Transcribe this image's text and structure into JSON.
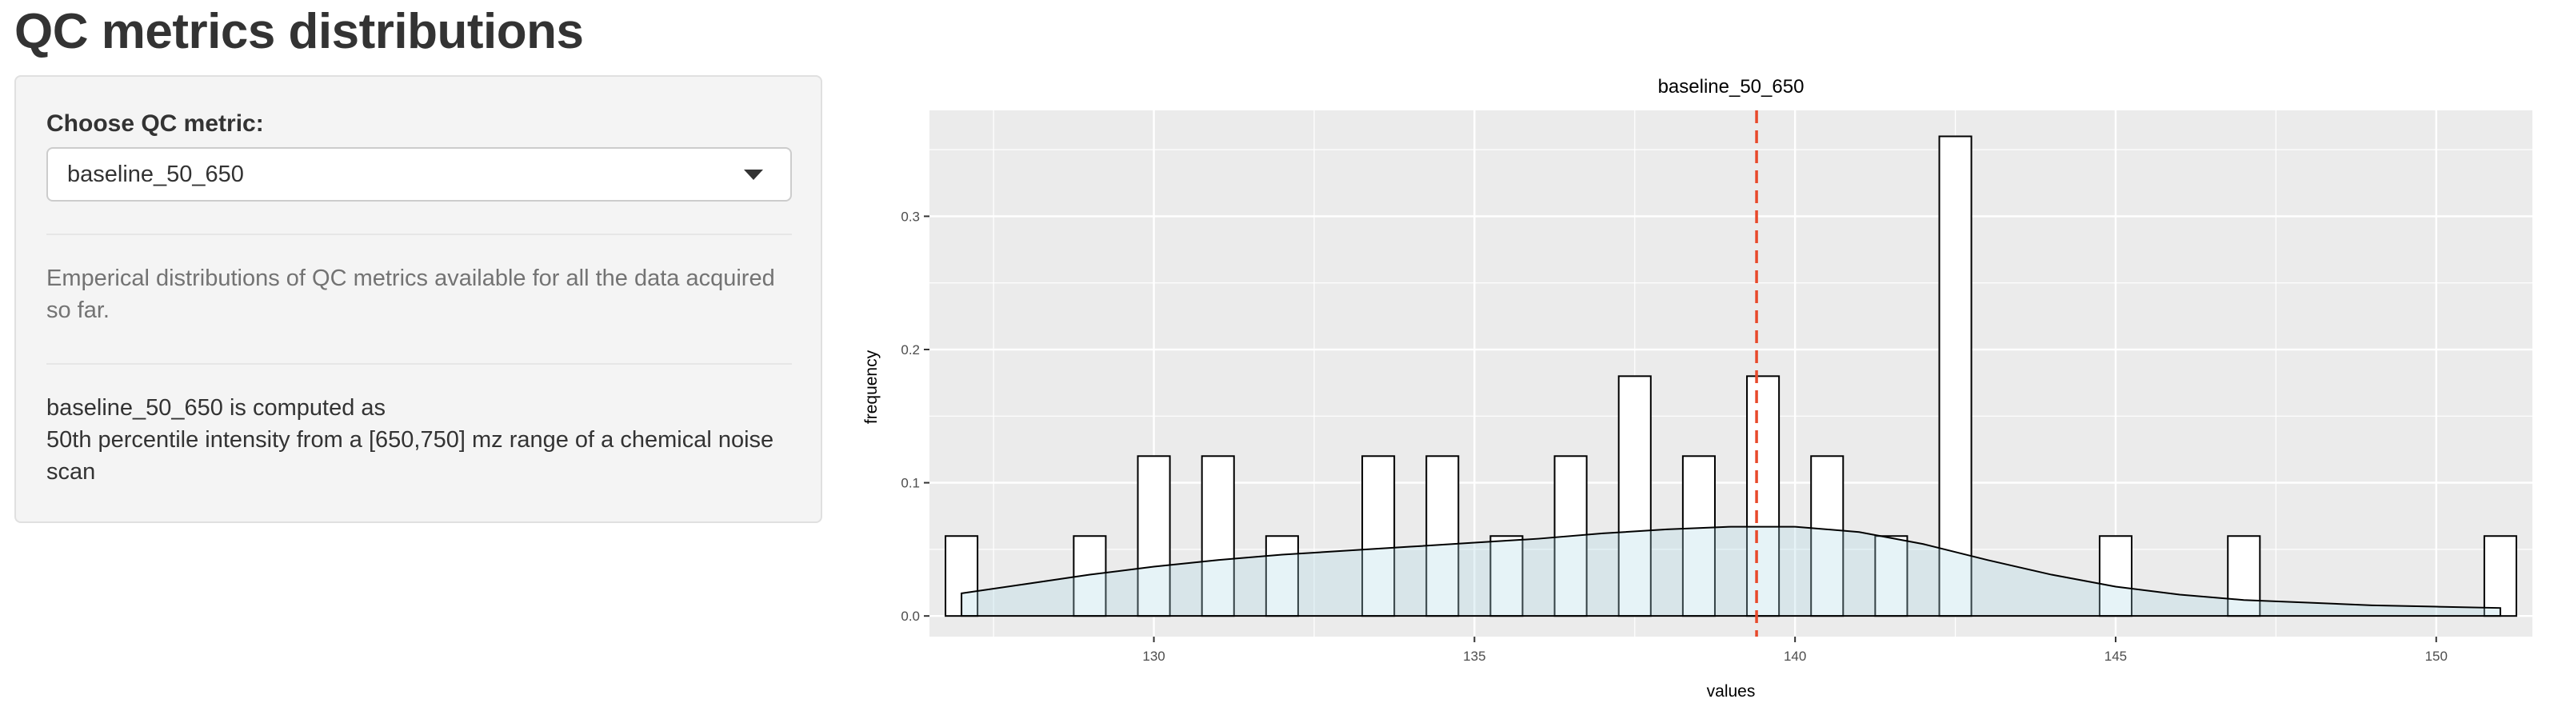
{
  "page": {
    "title": "QC metrics distributions"
  },
  "sidebar": {
    "control_label": "Choose QC metric:",
    "selected_metric": "baseline_50_650",
    "description": "Emperical distributions of QC metrics available for all the data acquired so far.",
    "computed_as_line": "baseline_50_650 is computed as",
    "computed_detail": "50th percentile intensity from a [650,750] mz range of a chemical noise scan"
  },
  "chart_data": {
    "type": "bar",
    "title": "baseline_50_650",
    "xlabel": "values",
    "ylabel": "frequency",
    "xlim": [
      126.5,
      151.5
    ],
    "ylim": [
      0,
      0.36
    ],
    "xticks": [
      130,
      135,
      140,
      145,
      150
    ],
    "yticks": [
      0.0,
      0.1,
      0.2,
      0.3
    ],
    "xtick_labels": [
      "130",
      "135",
      "140",
      "145",
      "150"
    ],
    "ytick_labels": [
      "0.0",
      "0.1",
      "0.2",
      "0.3"
    ],
    "bin_width": 0.5,
    "bins": [
      {
        "x": 127.0,
        "y": 0.06
      },
      {
        "x": 129.0,
        "y": 0.06
      },
      {
        "x": 130.0,
        "y": 0.12
      },
      {
        "x": 131.0,
        "y": 0.12
      },
      {
        "x": 132.0,
        "y": 0.06
      },
      {
        "x": 133.5,
        "y": 0.12
      },
      {
        "x": 134.5,
        "y": 0.12
      },
      {
        "x": 135.5,
        "y": 0.06
      },
      {
        "x": 136.5,
        "y": 0.12
      },
      {
        "x": 137.5,
        "y": 0.18
      },
      {
        "x": 138.5,
        "y": 0.12
      },
      {
        "x": 139.5,
        "y": 0.18
      },
      {
        "x": 140.5,
        "y": 0.12
      },
      {
        "x": 141.5,
        "y": 0.06
      },
      {
        "x": 142.5,
        "y": 0.36
      },
      {
        "x": 145.0,
        "y": 0.06
      },
      {
        "x": 147.0,
        "y": 0.06
      },
      {
        "x": 151.0,
        "y": 0.06
      }
    ],
    "density": {
      "x": [
        127,
        128,
        129,
        130,
        131,
        132,
        133,
        134,
        135,
        136,
        137,
        138,
        139,
        140,
        141,
        142,
        143,
        144,
        145,
        146,
        147,
        148,
        149,
        150,
        151
      ],
      "y": [
        0.017,
        0.024,
        0.031,
        0.037,
        0.042,
        0.046,
        0.049,
        0.052,
        0.055,
        0.058,
        0.062,
        0.065,
        0.067,
        0.067,
        0.063,
        0.054,
        0.042,
        0.031,
        0.022,
        0.016,
        0.012,
        0.01,
        0.008,
        0.007,
        0.006
      ]
    },
    "reference_line": {
      "x": 139.4,
      "style": "dashed",
      "color": "#e8492b"
    },
    "colors": {
      "panel_background": "#ebebeb",
      "grid": "#ffffff",
      "bar_fill": "#ffffff",
      "bar_stroke": "#000000",
      "density_fill": "#add8e6",
      "density_stroke": "#000000"
    },
    "grid": true,
    "legend": "none"
  }
}
